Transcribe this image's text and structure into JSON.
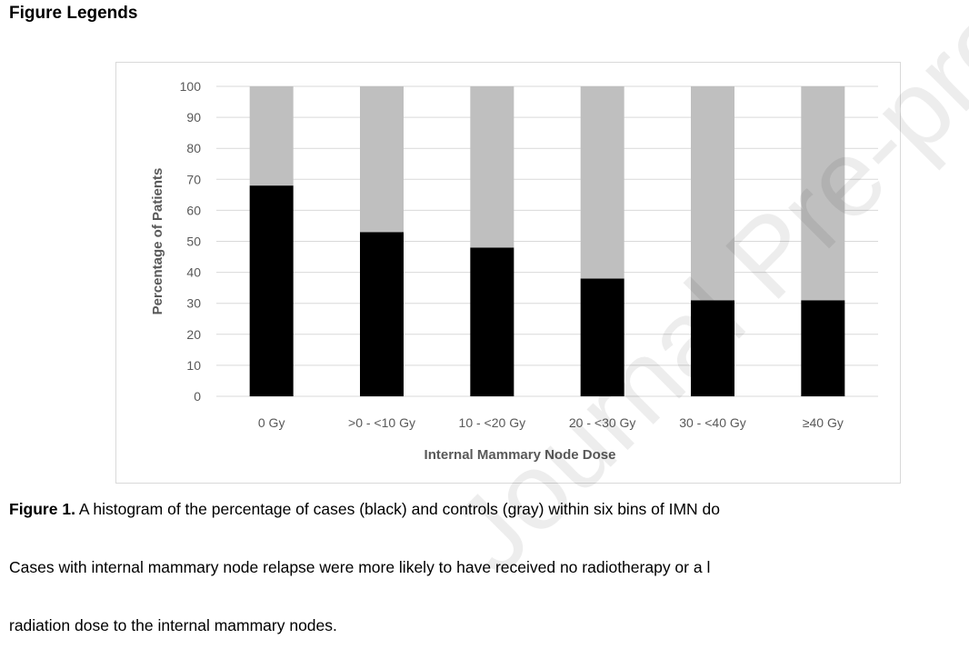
{
  "heading": "Figure Legends",
  "chart_data": {
    "type": "bar",
    "stacked": true,
    "categories": [
      "0 Gy",
      ">0 - <10 Gy",
      "10 - <20 Gy",
      "20 - <30 Gy",
      "30 - <40 Gy",
      "≥40 Gy"
    ],
    "series": [
      {
        "name": "",
        "color": "#000000",
        "values": [
          68,
          53,
          48,
          38,
          31,
          31
        ]
      },
      {
        "name": "",
        "color": "#bfbfbf",
        "values": [
          32,
          47,
          52,
          62,
          69,
          69
        ]
      }
    ],
    "xlabel": "Internal Mammary Node Dose",
    "ylabel": "Percentage of Patients",
    "ylim": [
      0,
      100
    ],
    "yticks": [
      0,
      10,
      20,
      30,
      40,
      50,
      60,
      70,
      80,
      90,
      100
    ],
    "grid": true,
    "legend": "none"
  },
  "caption": {
    "label": "Figure 1.",
    "line1": " A histogram of the percentage of cases (black) and controls (gray) within six bins of IMN do",
    "line2": "Cases with internal mammary node relapse were more likely to have received no radiotherapy or a l",
    "line3": "radiation dose to the internal mammary nodes."
  },
  "watermark": "Journal Pre-proof"
}
